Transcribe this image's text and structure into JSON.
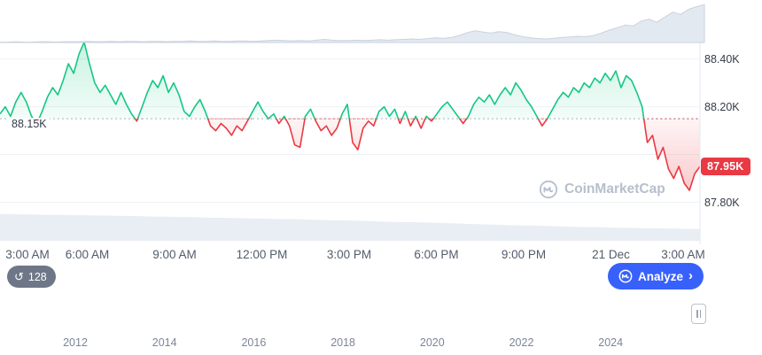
{
  "colors": {
    "green": "#16c784",
    "red": "#ea3943",
    "blue": "#3861fb",
    "grid": "#eff2f5",
    "axis_line": "#e3e8f0",
    "baseline_dot": "#aab2c0",
    "volume_fill": "#e9eef4",
    "mini_fill": "#e3e9f0",
    "mini_stroke": "#c9d2dd",
    "badge_gray": "#6e7787"
  },
  "watermark": {
    "text": "CoinMarketCap"
  },
  "toolbar": {
    "history_count": "128",
    "analyze_label": "Analyze"
  },
  "chart_data": {
    "type": "line",
    "title": "",
    "baseline": {
      "value": 88.15,
      "label": "88.15K"
    },
    "current_price": {
      "value": 87.95,
      "label": "87.95K"
    },
    "y_axis": {
      "ylim": [
        87.713,
        88.58
      ],
      "ticks": [
        {
          "value": 88.4,
          "label": "88.40K"
        },
        {
          "value": 88.2,
          "label": "88.20K"
        },
        {
          "value": 87.8,
          "label": "87.80K"
        }
      ],
      "gridlines": [
        88.4,
        88.2,
        88.0,
        87.8
      ]
    },
    "x_axis": {
      "ticks": [
        "3:00 AM",
        "6:00 AM",
        "9:00 AM",
        "12:00 PM",
        "3:00 PM",
        "6:00 PM",
        "9:00 PM",
        "21 Dec",
        "3:00 AM"
      ]
    },
    "series": [
      88.17,
      88.2,
      88.16,
      88.22,
      88.26,
      88.22,
      88.16,
      88.13,
      88.18,
      88.24,
      88.28,
      88.25,
      88.31,
      88.38,
      88.34,
      88.42,
      88.47,
      88.38,
      88.3,
      88.26,
      88.29,
      88.25,
      88.21,
      88.26,
      88.21,
      88.17,
      88.14,
      88.2,
      88.26,
      88.31,
      88.28,
      88.33,
      88.26,
      88.3,
      88.25,
      88.18,
      88.16,
      88.2,
      88.23,
      88.18,
      88.12,
      88.1,
      88.13,
      88.11,
      88.08,
      88.12,
      88.1,
      88.14,
      88.18,
      88.22,
      88.18,
      88.15,
      88.17,
      88.13,
      88.16,
      88.12,
      88.04,
      88.03,
      88.16,
      88.19,
      88.14,
      88.1,
      88.12,
      88.08,
      88.11,
      88.17,
      88.21,
      88.05,
      88.02,
      88.11,
      88.14,
      88.12,
      88.18,
      88.2,
      88.16,
      88.19,
      88.13,
      88.18,
      88.12,
      88.16,
      88.11,
      88.16,
      88.14,
      88.17,
      88.2,
      88.22,
      88.19,
      88.16,
      88.13,
      88.16,
      88.21,
      88.24,
      88.22,
      88.25,
      88.21,
      88.25,
      88.28,
      88.25,
      88.3,
      88.27,
      88.23,
      88.2,
      88.16,
      88.12,
      88.15,
      88.19,
      88.23,
      88.26,
      88.24,
      88.28,
      88.26,
      88.3,
      88.28,
      88.32,
      88.3,
      88.34,
      88.31,
      88.35,
      88.28,
      88.33,
      88.31,
      88.26,
      88.2,
      88.05,
      88.08,
      87.98,
      88.03,
      87.94,
      87.9,
      87.95,
      87.88,
      87.85,
      87.92,
      87.95
    ],
    "volume": [
      0.72,
      0.72,
      0.71,
      0.71,
      0.7,
      0.7,
      0.69,
      0.69,
      0.68,
      0.68,
      0.67,
      0.67,
      0.66,
      0.65,
      0.65,
      0.64,
      0.64,
      0.63,
      0.62,
      0.62,
      0.61,
      0.6,
      0.6,
      0.59,
      0.58,
      0.58,
      0.57,
      0.56,
      0.55,
      0.55,
      0.54,
      0.53,
      0.52,
      0.51,
      0.5,
      0.5,
      0.49,
      0.48,
      0.47,
      0.46,
      0.45,
      0.44,
      0.43,
      0.42,
      0.41,
      0.41,
      0.4,
      0.39,
      0.38,
      0.37,
      0.37,
      0.36,
      0.35,
      0.35,
      0.34,
      0.34,
      0.33,
      0.33,
      0.32,
      0.32
    ],
    "navigator": {
      "years": [
        "2012",
        "2014",
        "2016",
        "2018",
        "2020",
        "2022",
        "2024"
      ],
      "values": [
        0.01,
        0.01,
        0.02,
        0.01,
        0.01,
        0.02,
        0.02,
        0.01,
        0.02,
        0.02,
        0.02,
        0.03,
        0.02,
        0.02,
        0.03,
        0.02,
        0.03,
        0.03,
        0.02,
        0.03,
        0.03,
        0.02,
        0.03,
        0.03,
        0.04,
        0.03,
        0.03,
        0.04,
        0.03,
        0.03,
        0.04,
        0.04,
        0.03,
        0.04,
        0.05,
        0.06,
        0.05,
        0.04,
        0.05,
        0.04,
        0.06,
        0.08,
        0.06,
        0.05,
        0.05,
        0.06,
        0.05,
        0.06,
        0.07,
        0.06,
        0.07,
        0.08,
        0.09,
        0.08,
        0.1,
        0.12,
        0.11,
        0.13,
        0.18,
        0.25,
        0.3,
        0.27,
        0.24,
        0.28,
        0.26,
        0.2,
        0.15,
        0.12,
        0.1,
        0.09,
        0.11,
        0.13,
        0.14,
        0.16,
        0.15,
        0.18,
        0.24,
        0.32,
        0.38,
        0.45,
        0.42,
        0.55,
        0.6,
        0.52,
        0.65,
        0.78,
        0.72,
        0.85,
        0.92,
        0.97
      ]
    }
  }
}
